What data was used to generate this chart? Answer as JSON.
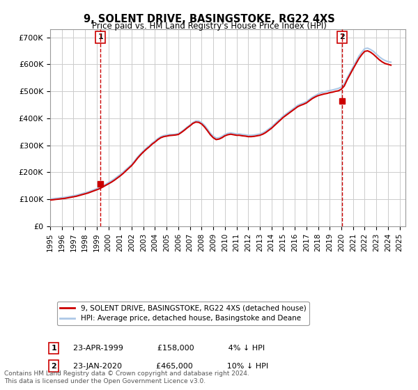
{
  "title": "9, SOLENT DRIVE, BASINGSTOKE, RG22 4XS",
  "subtitle": "Price paid vs. HM Land Registry's House Price Index (HPI)",
  "ylabel_ticks": [
    "£0",
    "£100K",
    "£200K",
    "£300K",
    "£400K",
    "£500K",
    "£600K",
    "£700K"
  ],
  "ytick_values": [
    0,
    100000,
    200000,
    300000,
    400000,
    500000,
    600000,
    700000
  ],
  "ylim": [
    0,
    730000
  ],
  "xlim_start": 1995.0,
  "xlim_end": 2025.5,
  "legend_line1": "9, SOLENT DRIVE, BASINGSTOKE, RG22 4XS (detached house)",
  "legend_line2": "HPI: Average price, detached house, Basingstoke and Deane",
  "transaction1_label": "1",
  "transaction1_date": "23-APR-1999",
  "transaction1_price": "£158,000",
  "transaction1_hpi": "4% ↓ HPI",
  "transaction1_year": 1999.31,
  "transaction1_value": 158000,
  "transaction2_label": "2",
  "transaction2_date": "23-JAN-2020",
  "transaction2_price": "£465,000",
  "transaction2_hpi": "10% ↓ HPI",
  "transaction2_year": 2020.06,
  "transaction2_value": 465000,
  "footnote": "Contains HM Land Registry data © Crown copyright and database right 2024.\nThis data is licensed under the Open Government Licence v3.0.",
  "hpi_color": "#adc8e6",
  "price_color": "#cc0000",
  "marker_color": "#cc0000",
  "background_color": "#ffffff",
  "grid_color": "#cccccc",
  "hpi_years": [
    1995.0,
    1995.25,
    1995.5,
    1995.75,
    1996.0,
    1996.25,
    1996.5,
    1996.75,
    1997.0,
    1997.25,
    1997.5,
    1997.75,
    1998.0,
    1998.25,
    1998.5,
    1998.75,
    1999.0,
    1999.25,
    1999.5,
    1999.75,
    2000.0,
    2000.25,
    2000.5,
    2000.75,
    2001.0,
    2001.25,
    2001.5,
    2001.75,
    2002.0,
    2002.25,
    2002.5,
    2002.75,
    2003.0,
    2003.25,
    2003.5,
    2003.75,
    2004.0,
    2004.25,
    2004.5,
    2004.75,
    2005.0,
    2005.25,
    2005.5,
    2005.75,
    2006.0,
    2006.25,
    2006.5,
    2006.75,
    2007.0,
    2007.25,
    2007.5,
    2007.75,
    2008.0,
    2008.25,
    2008.5,
    2008.75,
    2009.0,
    2009.25,
    2009.5,
    2009.75,
    2010.0,
    2010.25,
    2010.5,
    2010.75,
    2011.0,
    2011.25,
    2011.5,
    2011.75,
    2012.0,
    2012.25,
    2012.5,
    2012.75,
    2013.0,
    2013.25,
    2013.5,
    2013.75,
    2014.0,
    2014.25,
    2014.5,
    2014.75,
    2015.0,
    2015.25,
    2015.5,
    2015.75,
    2016.0,
    2016.25,
    2016.5,
    2016.75,
    2017.0,
    2017.25,
    2017.5,
    2017.75,
    2018.0,
    2018.25,
    2018.5,
    2018.75,
    2019.0,
    2019.25,
    2019.5,
    2019.75,
    2020.0,
    2020.25,
    2020.5,
    2020.75,
    2021.0,
    2021.25,
    2021.5,
    2021.75,
    2022.0,
    2022.25,
    2022.5,
    2022.75,
    2023.0,
    2023.25,
    2023.5,
    2023.75,
    2024.0,
    2024.25
  ],
  "hpi_values": [
    101000,
    102000,
    103500,
    104500,
    106000,
    107000,
    109000,
    111000,
    113000,
    115000,
    118000,
    121000,
    124000,
    127000,
    131000,
    135000,
    139000,
    143000,
    149000,
    155000,
    162000,
    168000,
    175000,
    183000,
    191000,
    200000,
    210000,
    219000,
    229000,
    242000,
    256000,
    268000,
    279000,
    289000,
    298000,
    308000,
    316000,
    325000,
    332000,
    336000,
    338000,
    340000,
    340000,
    341000,
    343000,
    350000,
    358000,
    367000,
    375000,
    384000,
    390000,
    390000,
    384000,
    374000,
    360000,
    345000,
    334000,
    327000,
    328000,
    333000,
    340000,
    344000,
    346000,
    344000,
    342000,
    342000,
    340000,
    339000,
    337000,
    337000,
    338000,
    340000,
    342000,
    346000,
    352000,
    360000,
    368000,
    378000,
    388000,
    398000,
    408000,
    416000,
    424000,
    432000,
    440000,
    448000,
    453000,
    457000,
    462000,
    470000,
    478000,
    484000,
    490000,
    494000,
    497000,
    500000,
    503000,
    505000,
    508000,
    511000,
    516000,
    528000,
    550000,
    570000,
    590000,
    610000,
    630000,
    645000,
    658000,
    660000,
    655000,
    648000,
    638000,
    628000,
    620000,
    614000,
    610000,
    608000
  ],
  "price_years": [
    1995.0,
    1995.25,
    1995.5,
    1995.75,
    1996.0,
    1996.25,
    1996.5,
    1996.75,
    1997.0,
    1997.25,
    1997.5,
    1997.75,
    1998.0,
    1998.25,
    1998.5,
    1998.75,
    1999.0,
    1999.25,
    1999.5,
    1999.75,
    2000.0,
    2000.25,
    2000.5,
    2000.75,
    2001.0,
    2001.25,
    2001.5,
    2001.75,
    2002.0,
    2002.25,
    2002.5,
    2002.75,
    2003.0,
    2003.25,
    2003.5,
    2003.75,
    2004.0,
    2004.25,
    2004.5,
    2004.75,
    2005.0,
    2005.25,
    2005.5,
    2005.75,
    2006.0,
    2006.25,
    2006.5,
    2006.75,
    2007.0,
    2007.25,
    2007.5,
    2007.75,
    2008.0,
    2008.25,
    2008.5,
    2008.75,
    2009.0,
    2009.25,
    2009.5,
    2009.75,
    2010.0,
    2010.25,
    2010.5,
    2010.75,
    2011.0,
    2011.25,
    2011.5,
    2011.75,
    2012.0,
    2012.25,
    2012.5,
    2012.75,
    2013.0,
    2013.25,
    2013.5,
    2013.75,
    2014.0,
    2014.25,
    2014.5,
    2014.75,
    2015.0,
    2015.25,
    2015.5,
    2015.75,
    2016.0,
    2016.25,
    2016.5,
    2016.75,
    2017.0,
    2017.25,
    2017.5,
    2017.75,
    2018.0,
    2018.25,
    2018.5,
    2018.75,
    2019.0,
    2019.25,
    2019.5,
    2019.75,
    2020.0,
    2020.25,
    2020.5,
    2020.75,
    2021.0,
    2021.25,
    2021.5,
    2021.75,
    2022.0,
    2022.25,
    2022.5,
    2022.75,
    2023.0,
    2023.25,
    2023.5,
    2023.75,
    2024.0,
    2024.25
  ],
  "price_values": [
    97000,
    98000,
    99500,
    100500,
    102000,
    103000,
    105000,
    107000,
    109000,
    111000,
    114000,
    117000,
    120000,
    123000,
    127000,
    131000,
    135000,
    139000,
    145000,
    151000,
    157000,
    163000,
    170000,
    178000,
    186000,
    195000,
    205000,
    215000,
    225000,
    238000,
    252000,
    264000,
    275000,
    285000,
    294000,
    304000,
    312000,
    321000,
    328000,
    332000,
    334000,
    336000,
    337000,
    338000,
    340000,
    347000,
    355000,
    364000,
    372000,
    381000,
    386000,
    385000,
    379000,
    368000,
    354000,
    339000,
    328000,
    321000,
    323000,
    328000,
    335000,
    339000,
    341000,
    339000,
    337000,
    337000,
    335000,
    334000,
    332000,
    332000,
    333000,
    335000,
    337000,
    341000,
    347000,
    355000,
    363000,
    373000,
    383000,
    393000,
    403000,
    411000,
    419000,
    427000,
    435000,
    443000,
    448000,
    452000,
    457000,
    465000,
    473000,
    479000,
    484000,
    487000,
    490000,
    492000,
    495000,
    497000,
    500000,
    502000,
    508000,
    520000,
    543000,
    563000,
    583000,
    602000,
    621000,
    636000,
    648000,
    650000,
    645000,
    637000,
    627000,
    617000,
    609000,
    603000,
    600000,
    597000
  ],
  "xtick_years": [
    1995,
    1996,
    1997,
    1998,
    1999,
    2000,
    2001,
    2002,
    2003,
    2004,
    2005,
    2006,
    2007,
    2008,
    2009,
    2010,
    2011,
    2012,
    2013,
    2014,
    2015,
    2016,
    2017,
    2018,
    2019,
    2020,
    2021,
    2022,
    2023,
    2024,
    2025
  ]
}
